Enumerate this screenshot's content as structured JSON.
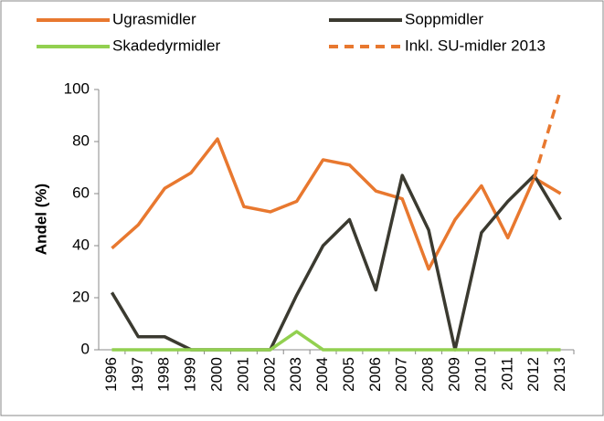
{
  "chart_data": {
    "type": "line",
    "y_label": "Andel (%)",
    "categories": [
      "1996",
      "1997",
      "1998",
      "1999",
      "2000",
      "2001",
      "2002",
      "2003",
      "2004",
      "2005",
      "2006",
      "2007",
      "2008",
      "2009",
      "2010",
      "2011",
      "2012",
      "2013"
    ],
    "series": [
      {
        "name": "Ugrasmidler",
        "color": "#e8782f",
        "dash": false,
        "values": [
          39,
          48,
          62,
          68,
          81,
          55,
          53,
          57,
          73,
          71,
          61,
          58,
          31,
          50,
          63,
          43,
          66,
          60
        ]
      },
      {
        "name": "Soppmidler",
        "color": "#3b3a30",
        "dash": false,
        "values": [
          22,
          5,
          5,
          0,
          0,
          0,
          0,
          21,
          40,
          50,
          23,
          67,
          46,
          0,
          45,
          57,
          67,
          50
        ]
      },
      {
        "name": "Skadedyrmidler",
        "color": "#92d050",
        "dash": false,
        "values": [
          0,
          0,
          0,
          0,
          0,
          0,
          0,
          7,
          0,
          0,
          0,
          0,
          0,
          0,
          0,
          0,
          0,
          0
        ]
      },
      {
        "name": "Inkl. SU-midler 2013",
        "color": "#e8782f",
        "dash": true,
        "values": [
          null,
          null,
          null,
          null,
          null,
          null,
          null,
          null,
          null,
          null,
          null,
          null,
          null,
          null,
          null,
          null,
          66,
          100
        ]
      }
    ],
    "ylim": [
      0,
      100
    ],
    "yticks": [
      0,
      20,
      40,
      60,
      80,
      100
    ],
    "grid": false
  }
}
